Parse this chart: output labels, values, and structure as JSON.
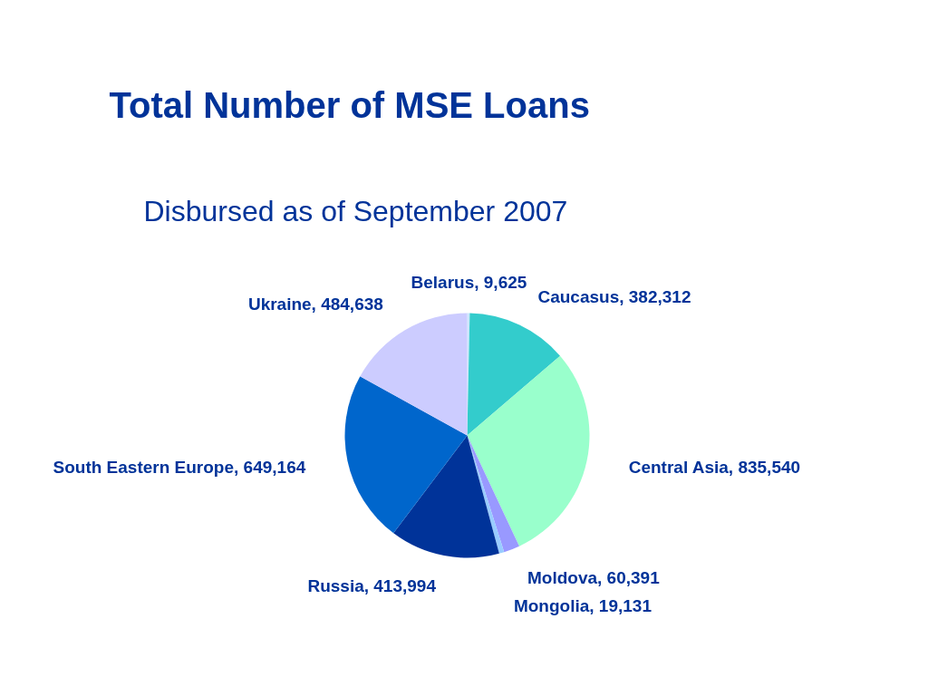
{
  "chart_data": {
    "type": "pie",
    "title": "Total Number of MSE Loans",
    "subtitle": "Disbursed as of September 2007",
    "categories": [
      "Belarus",
      "Caucasus",
      "Central Asia",
      "Moldova",
      "Mongolia",
      "Russia",
      "South Eastern Europe",
      "Ukraine"
    ],
    "values": [
      9625,
      382312,
      835540,
      60391,
      19131,
      413994,
      649164,
      484638
    ],
    "value_labels": [
      "9,625",
      "382,312",
      "835,540",
      "60,391",
      "19,131",
      "413,994",
      "649,164",
      "484,638"
    ],
    "colors": [
      "#cce6ff",
      "#33cccc",
      "#99ffcc",
      "#9999ff",
      "#99ccff",
      "#003399",
      "#0066cc",
      "#ccccff"
    ]
  }
}
